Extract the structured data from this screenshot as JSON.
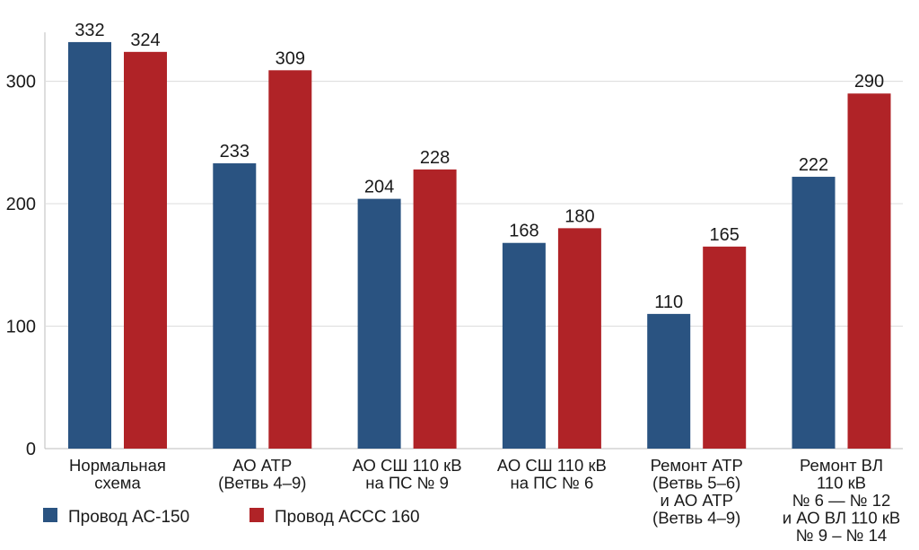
{
  "chart_data": {
    "type": "bar",
    "categories": [
      [
        "Нормальная",
        "схема"
      ],
      [
        "АО АТР",
        "(Ветвь 4–9)"
      ],
      [
        "АО СШ 110 кВ",
        "на ПС № 9"
      ],
      [
        "АО СШ 110 кВ",
        "на ПС № 6"
      ],
      [
        "Ремонт АТР",
        "(Ветвь 5–6)",
        "и АО АТР",
        "(Ветвь 4–9)"
      ],
      [
        "Ремонт ВЛ",
        "110 кВ",
        "№ 6 — № 12",
        "и АО ВЛ 110 кВ",
        "№ 9 – № 14"
      ]
    ],
    "series": [
      {
        "name": "Провод АС-150",
        "color": "#2a5381",
        "values": [
          332,
          233,
          204,
          168,
          110,
          222
        ]
      },
      {
        "name": "Провод АССС 160",
        "color": "#b02327",
        "values": [
          324,
          309,
          228,
          180,
          165,
          290
        ]
      }
    ],
    "yticks": [
      0,
      100,
      200,
      300
    ],
    "ylim": [
      0,
      340
    ],
    "grid": true,
    "legend_position": "bottom-left",
    "title": "",
    "xlabel": "",
    "ylabel": ""
  }
}
